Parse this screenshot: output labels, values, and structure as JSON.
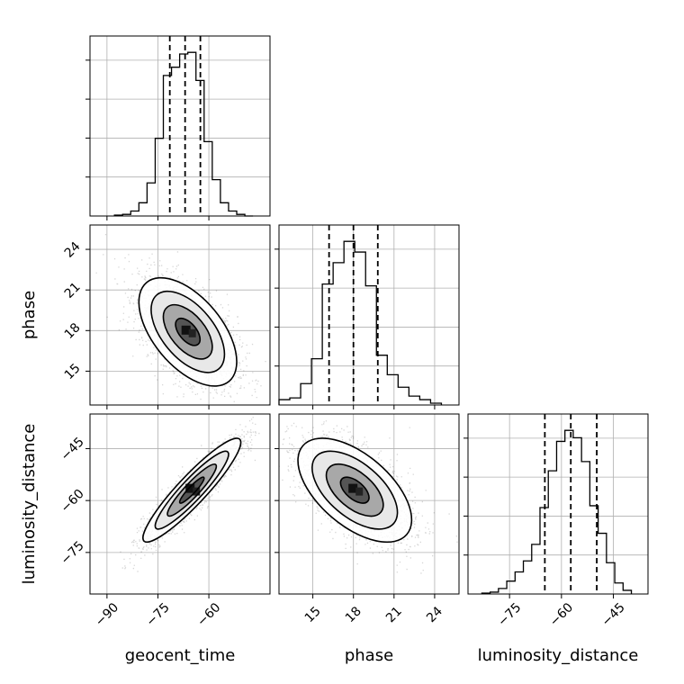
{
  "chart_data": {
    "type": "corner",
    "parameters": [
      "geocent_time",
      "phase",
      "luminosity_distance"
    ],
    "axis_labels": {
      "geocent_time": "geocent_time",
      "phase": "phase",
      "luminosity_distance": "luminosity_distance"
    },
    "ranges": {
      "geocent_time": [
        -95,
        -42
      ],
      "phase": [
        12.5,
        25.8
      ],
      "luminosity_distance": [
        -87,
        -35
      ]
    },
    "ticks": {
      "geocent_time": [
        {
          "v": -90,
          "label": "−90"
        },
        {
          "v": -75,
          "label": "−75"
        },
        {
          "v": -60,
          "label": "−60"
        }
      ],
      "phase": [
        {
          "v": 15,
          "label": "15"
        },
        {
          "v": 18,
          "label": "18"
        },
        {
          "v": 21,
          "label": "21"
        },
        {
          "v": 24,
          "label": "24"
        }
      ],
      "luminosity_distance": [
        {
          "v": -75,
          "label": "−75"
        },
        {
          "v": -60,
          "label": "−60"
        },
        {
          "v": -45,
          "label": "−45"
        }
      ]
    },
    "grid": true,
    "histograms": {
      "geocent_time": {
        "bins": [
          -87.8,
          -85.4,
          -83.0,
          -80.6,
          -78.2,
          -75.8,
          -73.4,
          -71.0,
          -68.6,
          -66.2,
          -63.8,
          -61.4,
          -59.0,
          -56.6,
          -54.2,
          -51.8,
          -49.4,
          -47.0
        ],
        "counts": [
          0.5,
          1,
          3,
          8,
          20,
          47,
          85,
          90,
          98,
          99,
          82,
          45,
          22,
          8,
          3,
          1,
          0
        ]
      },
      "phase": {
        "bins": [
          12.5,
          13.3,
          14.1,
          14.9,
          15.7,
          16.5,
          17.3,
          18.1,
          18.9,
          19.7,
          20.5,
          21.3,
          22.1,
          22.9,
          23.7,
          24.5
        ],
        "counts": [
          3,
          4,
          12,
          26,
          68,
          80,
          92,
          86,
          67,
          28,
          17,
          10,
          5,
          3,
          1
        ]
      },
      "luminosity_distance": {
        "bins": [
          -83.0,
          -80.6,
          -78.2,
          -75.8,
          -73.4,
          -71.0,
          -68.6,
          -66.2,
          -63.8,
          -61.4,
          -59.0,
          -56.6,
          -54.2,
          -51.8,
          -49.4,
          -47.0,
          -44.6,
          -42.2,
          -39.8
        ],
        "counts": [
          0.5,
          1,
          3,
          7,
          12,
          18,
          27,
          47,
          67,
          83,
          89,
          85,
          72,
          48,
          33,
          17,
          6,
          2
        ]
      }
    },
    "quantiles": {
      "geocent_time": [
        -71.5,
        -67.0,
        -62.5
      ],
      "phase": [
        16.2,
        18.0,
        19.8
      ],
      "luminosity_distance": [
        -64.8,
        -57.3,
        -49.8
      ]
    },
    "pair_stats": {
      "phase|geocent_time": {
        "mean": [
          -66.2,
          17.9
        ],
        "sd": [
          7.2,
          2.0
        ],
        "rho": -0.55
      },
      "luminosity_distance|geocent_time": {
        "mean": [
          -65.0,
          -57.0
        ],
        "sd": [
          7.2,
          7.5
        ],
        "rho": 0.92
      },
      "luminosity_distance|phase": {
        "mean": [
          18.1,
          -57.0
        ],
        "sd": [
          2.1,
          7.5
        ],
        "rho": -0.57
      }
    },
    "contour_levels_sigma": [
      0.5,
      1.0,
      1.5,
      2.0
    ]
  }
}
